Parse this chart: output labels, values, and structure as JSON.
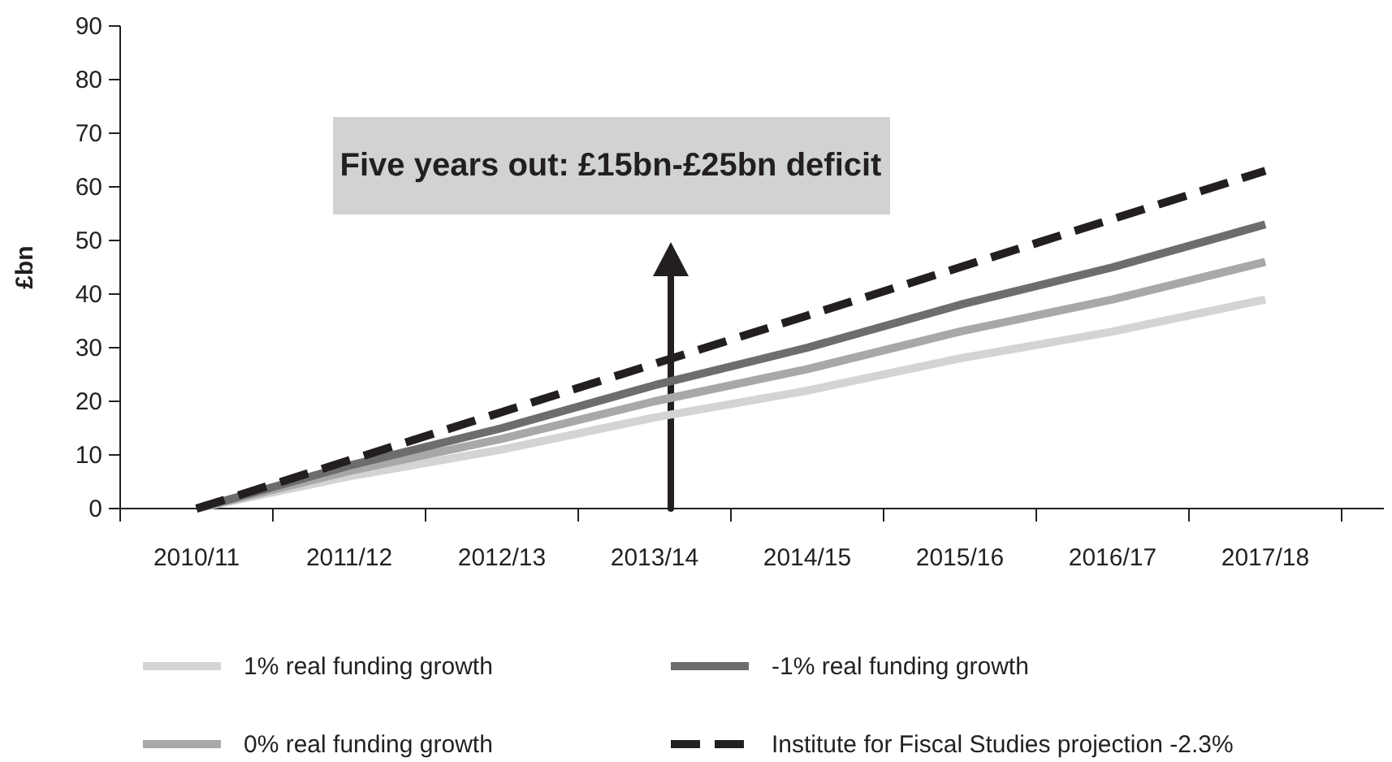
{
  "chart_data": {
    "type": "line",
    "ylabel": "£bn",
    "categories": [
      "2010/11",
      "2011/12",
      "2012/13",
      "2013/14",
      "2014/15",
      "2015/16",
      "2016/17",
      "2017/18"
    ],
    "series": [
      {
        "name": "1% real funding growth",
        "color": "#d4d4d4",
        "line_style": "solid",
        "values": [
          0,
          6,
          11,
          17,
          22,
          28,
          33,
          39
        ]
      },
      {
        "name": "0% real funding growth",
        "color": "#a8a8ab",
        "line_style": "solid",
        "values": [
          0,
          7,
          13,
          20,
          26,
          33,
          39,
          46
        ]
      },
      {
        "name": "-1% real funding growth",
        "color": "#6d6d70",
        "line_style": "solid",
        "values": [
          0,
          8,
          15,
          23,
          30,
          38,
          45,
          53
        ]
      },
      {
        "name": "Institute for Fiscal Studies projection -2.3%",
        "color": "#231f20",
        "line_style": "dashed",
        "values": [
          0,
          9,
          18,
          27,
          36,
          45,
          54,
          63
        ]
      }
    ],
    "ylim": [
      0,
      90
    ],
    "yticks": [
      0,
      10,
      20,
      30,
      40,
      50,
      60,
      70,
      80,
      90
    ],
    "annotations": [
      "Five years out: £15bn-£25bn deficit"
    ],
    "grid": false,
    "marker": "none",
    "legend": "bottom"
  }
}
